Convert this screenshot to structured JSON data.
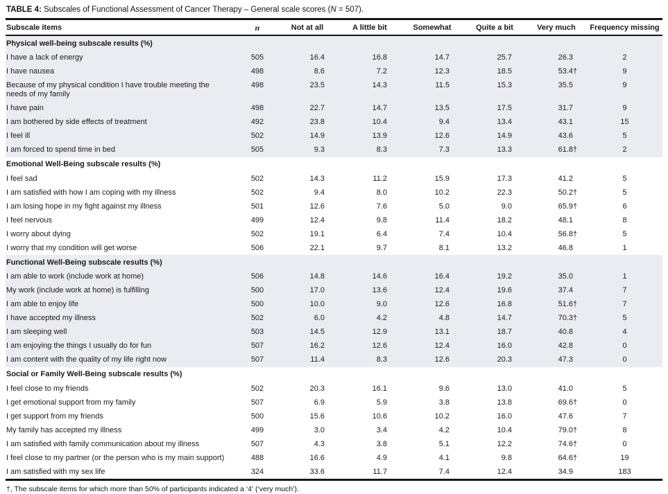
{
  "title": {
    "prefix": "TABLE 4:",
    "body": " Subscales of Functional Assessment of Cancer Therapy – General scale scores (",
    "n": "N",
    "suffix": " = 507)."
  },
  "header": {
    "columns": [
      "Subscale items",
      "n",
      "Not at all",
      "A little bit",
      "Somewhat",
      "Quite a bit",
      "Very much",
      "Frequency missing"
    ]
  },
  "table": {
    "sections": [
      {
        "title": "Physical well-being subscale results (%)",
        "shaded": true,
        "rows": [
          {
            "item": "I have a lack of energy",
            "n": "505",
            "values": [
              "16.4",
              "16.8",
              "14.7",
              "25.7",
              "26.3"
            ],
            "missing": "2"
          },
          {
            "item": "I have nausea",
            "n": "498",
            "values": [
              "8.6",
              "7.2",
              "12.3",
              "18.5",
              "53.4†"
            ],
            "missing": "9"
          },
          {
            "item": "Because of my physical condition I have trouble meeting the needs of my family",
            "n": "498",
            "values": [
              "23.5",
              "14.3",
              "11.5",
              "15.3",
              "35.5"
            ],
            "missing": "9"
          },
          {
            "item": "I have pain",
            "n": "498",
            "values": [
              "22.7",
              "14.7",
              "13.5",
              "17.5",
              "31.7"
            ],
            "missing": "9"
          },
          {
            "item": "I am bothered by side effects of treatment",
            "n": "492",
            "values": [
              "23.8",
              "10.4",
              "9.4",
              "13.4",
              "43.1"
            ],
            "missing": "15"
          },
          {
            "item": "I feel ill",
            "n": "502",
            "values": [
              "14.9",
              "13.9",
              "12.6",
              "14.9",
              "43.6"
            ],
            "missing": "5"
          },
          {
            "item": "I am forced to spend time in bed",
            "n": "505",
            "values": [
              "9.3",
              "8.3",
              "7.3",
              "13.3",
              "61.8†"
            ],
            "missing": "2"
          }
        ]
      },
      {
        "title": "Emotional Well-Being subscale results (%)",
        "shaded": false,
        "rows": [
          {
            "item": "I feel sad",
            "n": "502",
            "values": [
              "14.3",
              "11.2",
              "15.9",
              "17.3",
              "41.2"
            ],
            "missing": "5"
          },
          {
            "item": "I am satisfied with how I am coping with my illness",
            "n": "502",
            "values": [
              "9.4",
              "8.0",
              "10.2",
              "22.3",
              "50.2†"
            ],
            "missing": "5"
          },
          {
            "item": "I am losing hope in my fight against my illness",
            "n": "501",
            "values": [
              "12.6",
              "7.6",
              "5.0",
              "9.0",
              "65.9†"
            ],
            "missing": "6"
          },
          {
            "item": "I feel nervous",
            "n": "499",
            "values": [
              "12.4",
              "9.8",
              "11.4",
              "18.2",
              "48.1"
            ],
            "missing": "8"
          },
          {
            "item": "I worry about dying",
            "n": "502",
            "values": [
              "19.1",
              "6.4",
              "7.4",
              "10.4",
              "56.8†"
            ],
            "missing": "5"
          },
          {
            "item": "I worry that my condition will get worse",
            "n": "506",
            "values": [
              "22.1",
              "9.7",
              "8.1",
              "13.2",
              "46.8"
            ],
            "missing": "1"
          }
        ]
      },
      {
        "title": "Functional Well-Being subscale results (%)",
        "shaded": true,
        "rows": [
          {
            "item": "I am able to work (include work at home)",
            "n": "506",
            "values": [
              "14.8",
              "14.6",
              "16.4",
              "19.2",
              "35.0"
            ],
            "missing": "1"
          },
          {
            "item": "My work (include work at home) is fulfilling",
            "n": "500",
            "values": [
              "17.0",
              "13.6",
              "12.4",
              "19.6",
              "37.4"
            ],
            "missing": "7"
          },
          {
            "item": "I am able to enjoy life",
            "n": "500",
            "values": [
              "10.0",
              "9.0",
              "12.6",
              "16.8",
              "51.6†"
            ],
            "missing": "7"
          },
          {
            "item": "I have accepted my illness",
            "n": "502",
            "values": [
              "6.0",
              "4.2",
              "4.8",
              "14.7",
              "70.3†"
            ],
            "missing": "5"
          },
          {
            "item": "I am sleeping well",
            "n": "503",
            "values": [
              "14.5",
              "12.9",
              "13.1",
              "18.7",
              "40.8"
            ],
            "missing": "4"
          },
          {
            "item": "I am enjoying the things I usually do for fun",
            "n": "507",
            "values": [
              "16.2",
              "12.6",
              "12.4",
              "16.0",
              "42.8"
            ],
            "missing": "0"
          },
          {
            "item": "I am content with the quality of my life right now",
            "n": "507",
            "values": [
              "11.4",
              "8.3",
              "12.6",
              "20.3",
              "47.3"
            ],
            "missing": "0"
          }
        ]
      },
      {
        "title": "Social or Family Well-Being subscale results (%)",
        "shaded": false,
        "rows": [
          {
            "item": "I feel close to my friends",
            "n": "502",
            "values": [
              "20.3",
              "16.1",
              "9.6",
              "13.0",
              "41.0"
            ],
            "missing": "5"
          },
          {
            "item": "I get emotional support from my family",
            "n": "507",
            "values": [
              "6.9",
              "5.9",
              "3.8",
              "13.8",
              "69.6†"
            ],
            "missing": "0"
          },
          {
            "item": "I get support from my friends",
            "n": "500",
            "values": [
              "15.6",
              "10.6",
              "10.2",
              "16.0",
              "47.6"
            ],
            "missing": "7"
          },
          {
            "item": "My family has accepted my illness",
            "n": "499",
            "values": [
              "3.0",
              "3.4",
              "4.2",
              "10.4",
              "79.0†"
            ],
            "missing": "8"
          },
          {
            "item": "I am satisfied with family communication about my illness",
            "n": "507",
            "values": [
              "4.3",
              "3.8",
              "5.1",
              "12.2",
              "74.6†"
            ],
            "missing": "0"
          },
          {
            "item": "I feel close to my partner (or the person who is my main support)",
            "n": "488",
            "values": [
              "16.6",
              "4.9",
              "4.1",
              "9.8",
              "64.6†"
            ],
            "missing": "19"
          },
          {
            "item": "I am satisfied with my sex life",
            "n": "324",
            "values": [
              "33.6",
              "11.7",
              "7.4",
              "12.4",
              "34.9"
            ],
            "missing": "183"
          }
        ]
      }
    ]
  },
  "footnote": "†, The subscale items for which more than 50% of participants indicated a ‘4’ (‘very much’).",
  "colors": {
    "shaded_row": "#ebebf2",
    "rule": "#151515",
    "text": "#1a1a1a"
  }
}
